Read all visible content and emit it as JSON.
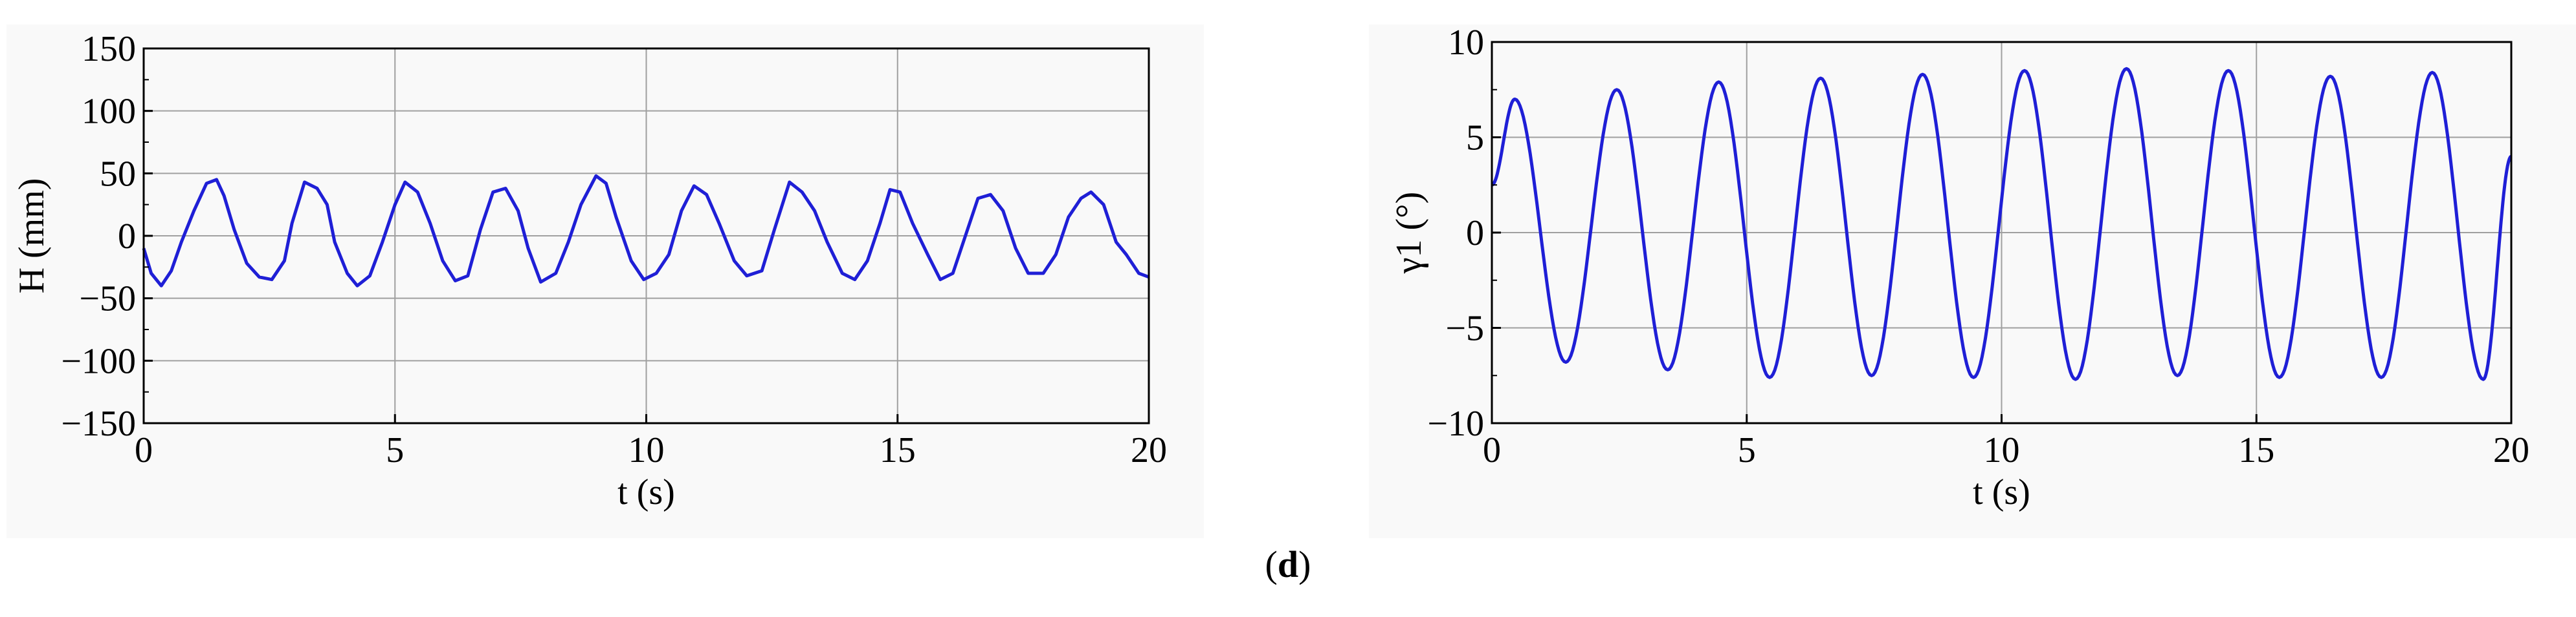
{
  "caption": {
    "open": "(",
    "letter": "d",
    "close": ")"
  },
  "colors": {
    "line": "#1f1fd6",
    "grid": "#a0a0a0",
    "axis": "#000000"
  },
  "chart_data": [
    {
      "type": "line",
      "title": "",
      "xlabel": "t (s)",
      "ylabel": "H (mm)",
      "xlim": [
        0,
        20
      ],
      "ylim": [
        -150,
        150
      ],
      "xticks": [
        0,
        5,
        10,
        15,
        20
      ],
      "yticks": [
        -150,
        -100,
        -50,
        0,
        50,
        100,
        150
      ],
      "xtick_labels": [
        "0",
        "5",
        "10",
        "15",
        "20"
      ],
      "ytick_labels": [
        "−150",
        "−100",
        "−50",
        "0",
        "50",
        "100",
        "150"
      ],
      "grid": true,
      "series": [
        {
          "x": [
            0,
            0.15,
            0.35,
            0.55,
            0.75,
            1.0,
            1.25,
            1.45,
            1.6,
            1.8,
            2.05,
            2.3,
            2.55,
            2.8,
            2.95,
            3.2,
            3.45,
            3.65,
            3.8,
            4.05,
            4.25,
            4.5,
            4.75,
            5.0,
            5.2,
            5.45,
            5.7,
            5.95,
            6.2,
            6.45,
            6.7,
            6.95,
            7.2,
            7.45,
            7.65,
            7.9,
            8.2,
            8.45,
            8.7,
            9.0,
            9.2,
            9.4,
            9.7,
            9.95,
            10.2,
            10.45,
            10.7,
            10.95,
            11.2,
            11.45,
            11.75,
            12.0,
            12.3,
            12.55,
            12.85,
            13.1,
            13.35,
            13.6,
            13.9,
            14.15,
            14.4,
            14.65,
            14.85,
            15.05,
            15.3,
            15.6,
            15.85,
            16.1,
            16.35,
            16.6,
            16.85,
            17.1,
            17.35,
            17.6,
            17.9,
            18.15,
            18.4,
            18.65,
            18.85,
            19.1,
            19.35,
            19.55,
            19.8,
            20.0
          ],
          "values": [
            -10,
            -30,
            -40,
            -28,
            -5,
            20,
            42,
            45,
            32,
            5,
            -22,
            -33,
            -35,
            -20,
            10,
            43,
            38,
            25,
            -5,
            -30,
            -40,
            -32,
            -5,
            25,
            43,
            35,
            10,
            -20,
            -36,
            -32,
            5,
            35,
            38,
            20,
            -10,
            -37,
            -30,
            -5,
            25,
            48,
            42,
            15,
            -20,
            -35,
            -30,
            -15,
            20,
            40,
            33,
            10,
            -20,
            -32,
            -28,
            5,
            43,
            35,
            20,
            -5,
            -30,
            -35,
            -20,
            10,
            37,
            35,
            10,
            -15,
            -35,
            -30,
            0,
            30,
            33,
            20,
            -10,
            -30,
            -30,
            -15,
            15,
            30,
            35,
            25,
            -5,
            -15,
            -30,
            -33
          ]
        }
      ]
    },
    {
      "type": "line",
      "title": "",
      "xlabel": "t (s)",
      "ylabel": "γ1 (°)",
      "xlim": [
        0,
        20
      ],
      "ylim": [
        -10,
        10
      ],
      "xticks": [
        0,
        5,
        10,
        15,
        20
      ],
      "yticks": [
        -10,
        -5,
        0,
        5,
        10
      ],
      "xtick_labels": [
        "0",
        "5",
        "10",
        "15",
        "20"
      ],
      "ytick_labels": [
        "−10",
        "−5",
        "0",
        "5",
        "10"
      ],
      "grid": true,
      "series": [
        {
          "x": [
            0.0,
            0.45,
            1.45,
            2.45,
            3.45,
            4.45,
            5.45,
            6.45,
            7.45,
            8.45,
            9.45,
            10.45,
            11.45,
            12.45,
            13.45,
            14.45,
            15.45,
            16.45,
            17.45,
            18.45,
            19.45,
            20.0
          ],
          "values": [
            2.5,
            7.0,
            -6.8,
            7.5,
            -7.2,
            7.9,
            -7.6,
            8.1,
            -7.5,
            8.3,
            -7.6,
            8.5,
            -7.7,
            8.6,
            -7.5,
            8.5,
            -7.6,
            8.2,
            -7.6,
            8.4,
            -7.7,
            4.0
          ]
        }
      ]
    }
  ]
}
